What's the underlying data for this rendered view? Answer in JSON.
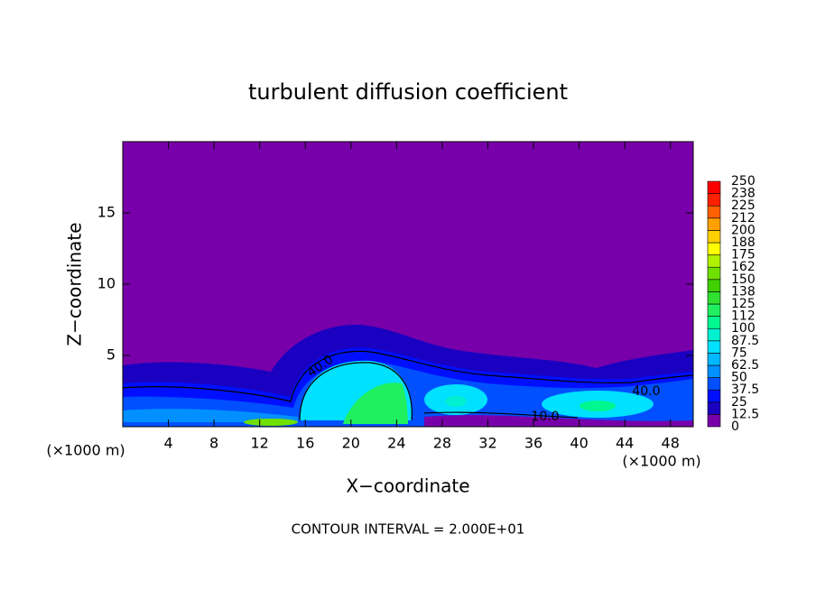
{
  "chart_data": {
    "type": "contour",
    "title": "turbulent diffusion coefficient",
    "xlabel": "X−coordinate",
    "ylabel": "Z−coordinate",
    "x_unit": "(×1000 m)",
    "y_unit": "(×1000 m)",
    "xlim": [
      0,
      50
    ],
    "ylim": [
      0,
      20
    ],
    "xticks": [
      4,
      8,
      12,
      16,
      20,
      24,
      28,
      32,
      36,
      40,
      44,
      48
    ],
    "yticks": [
      5,
      10,
      15
    ],
    "colorbar": {
      "levels": [
        0,
        12.5,
        25,
        37.5,
        50,
        62.5,
        75,
        87.5,
        100,
        112,
        125,
        138,
        150,
        162,
        175,
        188,
        200,
        212,
        225,
        238,
        250
      ],
      "colors": [
        "#7800aa",
        "#1a00c0",
        "#0010ff",
        "#0050ff",
        "#0090ff",
        "#00b8ff",
        "#00e0ff",
        "#00f0d0",
        "#00f890",
        "#20f060",
        "#30e030",
        "#40d000",
        "#70e000",
        "#b0f000",
        "#ffff00",
        "#ffd000",
        "#ffa000",
        "#ff6000",
        "#ff2000",
        "#ff0000",
        "#f08080"
      ]
    },
    "annotations": [
      "40.0",
      "40.0",
      "10.0"
    ],
    "footer": "CONTOUR INTERVAL = 2.000E+01"
  }
}
